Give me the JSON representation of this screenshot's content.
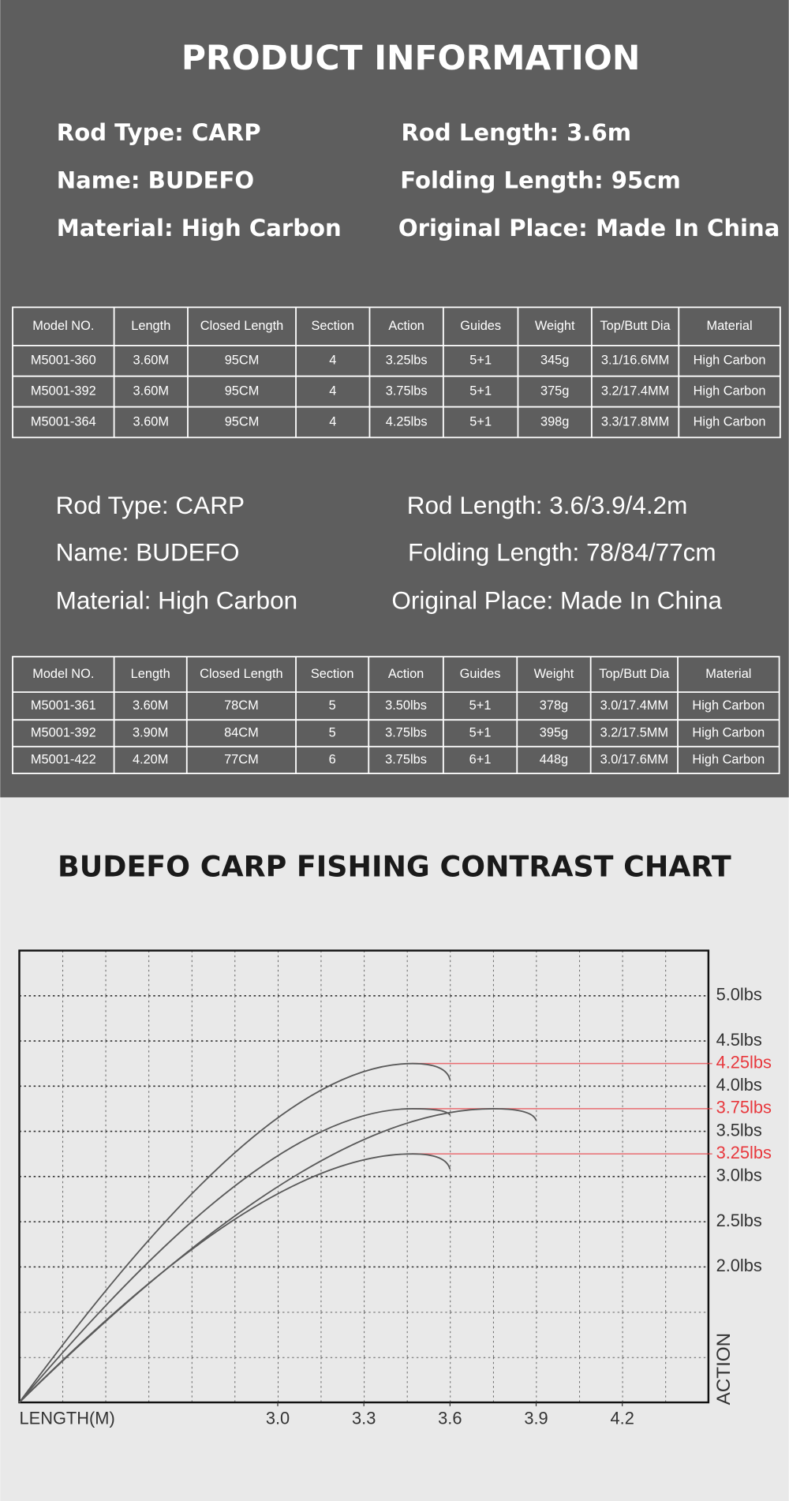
{
  "header": {
    "title": "PRODUCT INFORMATION"
  },
  "specs1": [
    [
      "Rod Type:  CARP",
      "Rod Length:  3.6m"
    ],
    [
      "Name: BUDEFO",
      "Folding Length: 95cm"
    ],
    [
      "Material: High Carbon",
      "Original Place: Made In China"
    ]
  ],
  "table1": {
    "headers": [
      "Model NO.",
      "Length",
      "Closed Length",
      "Section",
      "Action",
      "Guides",
      "Weight",
      "Top/Butt Dia",
      "Material"
    ],
    "rows": [
      [
        "M5001-360",
        "3.60M",
        "95CM",
        "4",
        "3.25lbs",
        "5+1",
        "345g",
        "3.1/16.6MM",
        "High Carbon"
      ],
      [
        "M5001-392",
        "3.60M",
        "95CM",
        "4",
        "3.75lbs",
        "5+1",
        "375g",
        "3.2/17.4MM",
        "High Carbon"
      ],
      [
        "M5001-364",
        "3.60M",
        "95CM",
        "4",
        "4.25lbs",
        "5+1",
        "398g",
        "3.3/17.8MM",
        "High Carbon"
      ]
    ]
  },
  "specs2": [
    [
      "Rod Type:  CARP",
      "Rod Length:  3.6/3.9/4.2m"
    ],
    [
      "Name: BUDEFO",
      "Folding Length: 78/84/77cm"
    ],
    [
      "Material: High Carbon",
      "Original Place: Made In China"
    ]
  ],
  "table2": {
    "headers": [
      "Model NO.",
      "Length",
      "Closed Length",
      "Section",
      "Action",
      "Guides",
      "Weight",
      "Top/Butt Dia",
      "Material"
    ],
    "rows": [
      [
        "M5001-361",
        "3.60M",
        "78CM",
        "5",
        "3.50lbs",
        "5+1",
        "378g",
        "3.0/17.4MM",
        "High Carbon"
      ],
      [
        "M5001-392",
        "3.90M",
        "84CM",
        "5",
        "3.75lbs",
        "5+1",
        "395g",
        "3.2/17.5MM",
        "High Carbon"
      ],
      [
        "M5001-422",
        "4.20M",
        "77CM",
        "6",
        "3.75lbs",
        "6+1",
        "448g",
        "3.0/17.6MM",
        "High Carbon"
      ]
    ]
  },
  "chart_data": {
    "type": "line",
    "title": "BUDEFO CARP FISHING CONTRAST CHART",
    "x_label": "LENGTH(M)",
    "y_label": "ACTION",
    "xlim": [
      2.1,
      4.5
    ],
    "ylim": [
      0.5,
      5.5
    ],
    "xticks": [
      {
        "value": 3,
        "label": "3.0"
      },
      3.3,
      3.6,
      3.9,
      4.2
    ],
    "yticks": [
      {
        "value": 5,
        "label": "5.0lbs"
      },
      {
        "value": 4.5,
        "label": "4.5lbs"
      },
      {
        "value": 4,
        "label": "4.0lbs"
      },
      {
        "value": 3.5,
        "label": "3.5lbs"
      },
      {
        "value": 3,
        "label": "3.0lbs"
      },
      {
        "value": 2.5,
        "label": "2.5lbs"
      },
      {
        "value": 2,
        "label": "2.0lbs"
      }
    ],
    "reference_lines": [
      {
        "value": 4.25,
        "label": "4.25lbs"
      },
      {
        "value": 3.75,
        "label": "3.75lbs"
      },
      {
        "value": 3.25,
        "label": "3.25lbs"
      }
    ],
    "reference_color": "#e8383d",
    "grid": true,
    "series": [
      {
        "color": "#5a5a5a",
        "x": [
          2.1,
          3.47,
          3.6
        ],
        "values": [
          0.5,
          4.25,
          4.07
        ]
      },
      {
        "color": "#5a5a5a",
        "x": [
          2.1,
          3.47,
          3.6
        ],
        "values": [
          0.5,
          3.75,
          3.68
        ]
      },
      {
        "color": "#5a5a5a",
        "x": [
          2.1,
          3.75,
          3.9
        ],
        "values": [
          0.5,
          3.75,
          3.62
        ]
      },
      {
        "color": "#5a5a5a",
        "x": [
          2.1,
          3.47,
          3.6
        ],
        "values": [
          0.5,
          3.25,
          3.08
        ]
      }
    ]
  }
}
